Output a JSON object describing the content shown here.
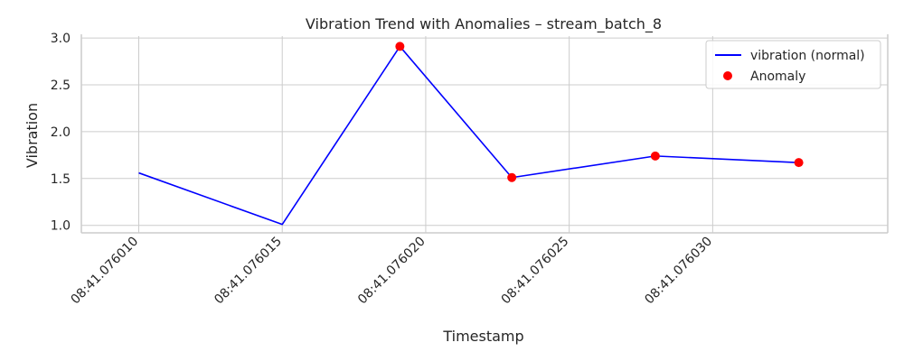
{
  "chart_data": {
    "type": "line",
    "title": "Vibration Trend with Anomalies – stream_batch_8",
    "xlabel": "Timestamp",
    "ylabel": "Vibration",
    "xlim": [
      8,
      36.1
    ],
    "ylim": [
      0.92,
      3.02
    ],
    "x_tick_values": [
      10,
      15,
      20,
      25,
      30
    ],
    "x_tick_labels": [
      "08:41.076010",
      "08:41.076015",
      "08:41.076020",
      "08:41.076025",
      "08:41.076030"
    ],
    "y_tick_values": [
      1.0,
      1.5,
      2.0,
      2.5,
      3.0
    ],
    "y_tick_labels": [
      "1.0",
      "1.5",
      "2.0",
      "2.5",
      "3.0"
    ],
    "grid": true,
    "legend_position": "top-right",
    "series": [
      {
        "name": "vibration (normal)",
        "kind": "line",
        "color": "#0000ff",
        "x": [
          10,
          15,
          19.1,
          23,
          28,
          33
        ],
        "values": [
          1.56,
          1.01,
          2.91,
          1.51,
          1.74,
          1.67
        ]
      },
      {
        "name": "Anomaly",
        "kind": "scatter",
        "color": "#ff0000",
        "x": [
          19.1,
          23,
          28,
          33
        ],
        "values": [
          2.91,
          1.51,
          1.74,
          1.67
        ]
      }
    ]
  }
}
